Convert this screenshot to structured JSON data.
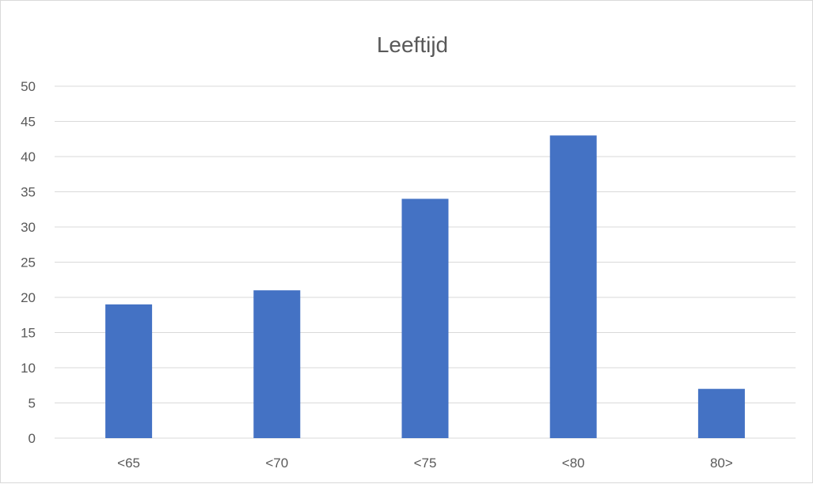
{
  "chart_data": {
    "type": "bar",
    "title": "Leeftijd",
    "xlabel": "",
    "ylabel": "",
    "categories": [
      "<65",
      "<70",
      "<75",
      "<80",
      "80>"
    ],
    "values": [
      19,
      21,
      34,
      43,
      7
    ],
    "ylim": [
      0,
      50
    ],
    "yticks": [
      0,
      5,
      10,
      15,
      20,
      25,
      30,
      35,
      40,
      45,
      50
    ],
    "grid": true,
    "legend": "none",
    "bar_color": "#4472c4"
  }
}
